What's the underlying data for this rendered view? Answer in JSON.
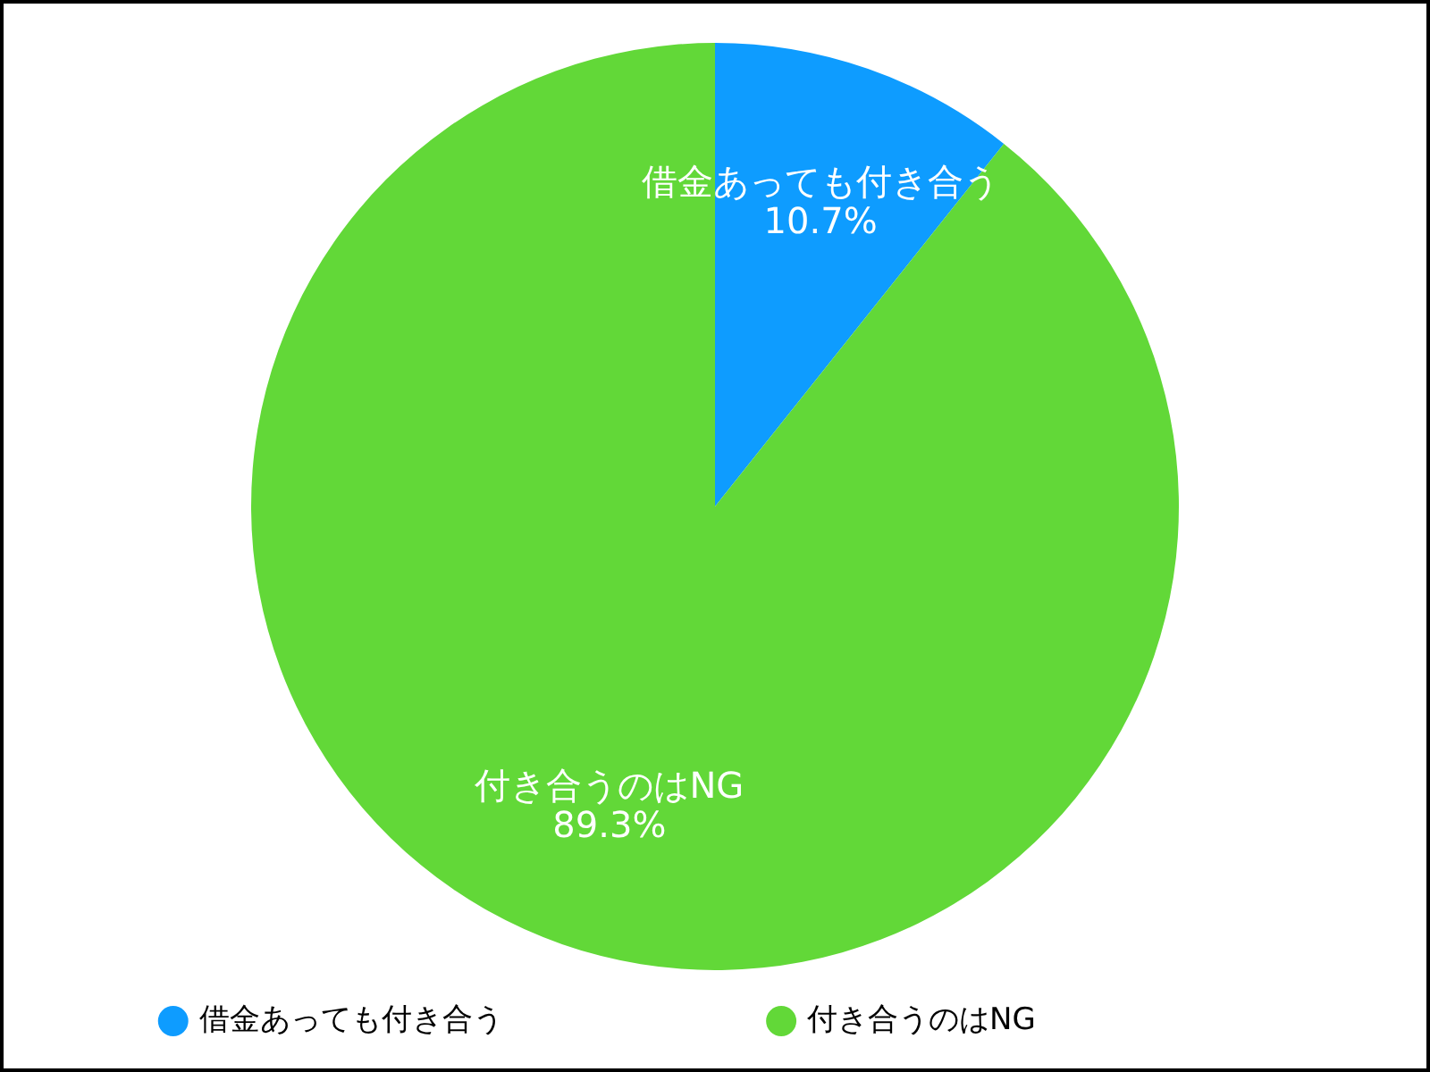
{
  "chart_data": {
    "type": "pie",
    "categories": [
      "借金あっても付き合う",
      "付き合うのはNG"
    ],
    "values": [
      10.7,
      89.3
    ],
    "colors": [
      "#0e9cff",
      "#62d838"
    ],
    "value_labels": [
      "10.7%",
      "89.3%"
    ],
    "legend": "bottom"
  }
}
